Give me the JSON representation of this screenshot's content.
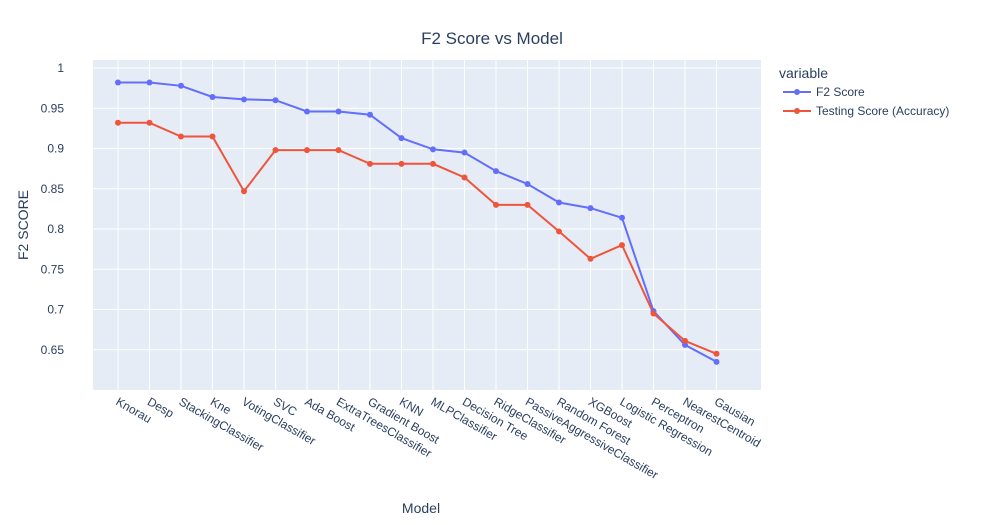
{
  "chart_data": {
    "type": "line",
    "title": "F2 Score vs Model",
    "xlabel": "Model",
    "ylabel": "F2 SCORE",
    "ylim": [
      0.6,
      1.01
    ],
    "y_ticks": [
      0.65,
      0.7,
      0.75,
      0.8,
      0.85,
      0.9,
      0.95,
      1
    ],
    "y_tick_labels": [
      "0.65",
      "0.7",
      "0.75",
      "0.8",
      "0.85",
      "0.9",
      "0.95",
      "1"
    ],
    "grid": true,
    "legend_placement": "top-right",
    "legend_title": "variable",
    "categories": [
      "Knorau",
      "Desp",
      "StackingClassifier",
      "Kne",
      "VotingClassifier",
      "SVC",
      "Ada Boost",
      "ExtraTreesClassifier",
      "Gradient Boost",
      "KNN",
      "MLPClassifier",
      "Decision Tree",
      "RidgeClassifier",
      "PassiveAggressiveClassifier",
      "Random Forest",
      "XGBoost",
      "Logistic Regression",
      "Perceptron",
      "NearestCentroid",
      "Gausian"
    ],
    "series": [
      {
        "name": "F2 Score",
        "color": "#636efa",
        "values": [
          0.982,
          0.982,
          0.978,
          0.964,
          0.961,
          0.96,
          0.946,
          0.946,
          0.942,
          0.913,
          0.899,
          0.895,
          0.872,
          0.856,
          0.833,
          0.826,
          0.814,
          0.698,
          0.656,
          0.635
        ]
      },
      {
        "name": "Testing Score (Accuracy)",
        "color": "#ef553b",
        "values": [
          0.932,
          0.932,
          0.915,
          0.915,
          0.847,
          0.898,
          0.898,
          0.898,
          0.881,
          0.881,
          0.881,
          0.864,
          0.83,
          0.83,
          0.797,
          0.763,
          0.78,
          0.695,
          0.661,
          0.645
        ]
      }
    ]
  }
}
